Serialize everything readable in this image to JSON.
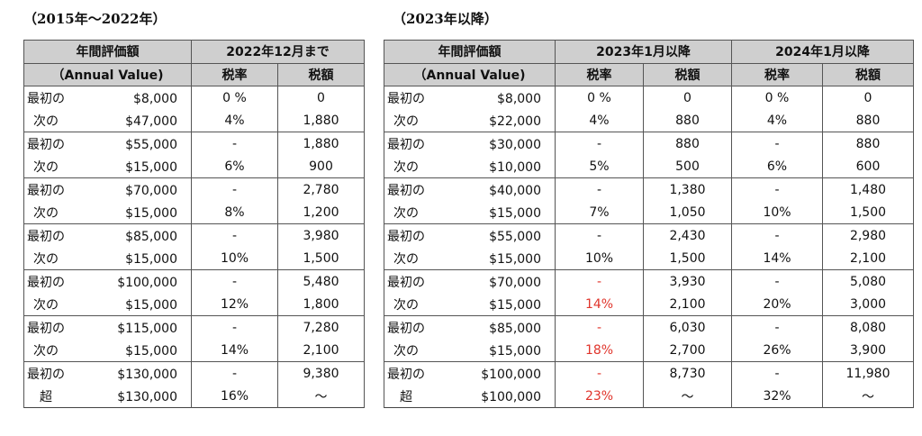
{
  "left": {
    "title": "（2015年〜2022年）",
    "header": {
      "col1_line1": "年間評価額",
      "col1_line2": "（Annual Value)",
      "group": "2022年12月まで",
      "rate": "税率",
      "tax": "税額"
    },
    "rows": [
      {
        "prefix": "最初の",
        "amount": "$8,000",
        "rate": "0 %",
        "tax": "0"
      },
      {
        "prefix": "次の",
        "amount": "$47,000",
        "rate": "4%",
        "tax": "1,880"
      },
      {
        "prefix": "最初の",
        "amount": "$55,000",
        "rate": "-",
        "tax": "1,880"
      },
      {
        "prefix": "次の",
        "amount": "$15,000",
        "rate": "6%",
        "tax": "900"
      },
      {
        "prefix": "最初の",
        "amount": "$70,000",
        "rate": "-",
        "tax": "2,780"
      },
      {
        "prefix": "次の",
        "amount": "$15,000",
        "rate": "8%",
        "tax": "1,200"
      },
      {
        "prefix": "最初の",
        "amount": "$85,000",
        "rate": "-",
        "tax": "3,980"
      },
      {
        "prefix": "次の",
        "amount": "$15,000",
        "rate": "10%",
        "tax": "1,500"
      },
      {
        "prefix": "最初の",
        "amount": "$100,000",
        "rate": "-",
        "tax": "5,480"
      },
      {
        "prefix": "次の",
        "amount": "$15,000",
        "rate": "12%",
        "tax": "1,800"
      },
      {
        "prefix": "最初の",
        "amount": "$115,000",
        "rate": "-",
        "tax": "7,280"
      },
      {
        "prefix": "次の",
        "amount": "$15,000",
        "rate": "14%",
        "tax": "2,100"
      },
      {
        "prefix": "最初の",
        "amount": "$130,000",
        "rate": "-",
        "tax": "9,380"
      },
      {
        "prefix": "超",
        "amount": "$130,000",
        "rate": "16%",
        "tax": "〜"
      }
    ]
  },
  "right": {
    "title": "（2023年以降）",
    "header": {
      "col1_line1": "年間評価額",
      "col1_line2": "（Annual Value)",
      "group1": "2023年1月以降",
      "group2": "2024年1月以降",
      "rate": "税率",
      "tax": "税額"
    },
    "rows": [
      {
        "prefix": "最初の",
        "amount": "$8,000",
        "rate1": "0 %",
        "tax1": "0",
        "rate2": "0 %",
        "tax2": "0"
      },
      {
        "prefix": "次の",
        "amount": "$22,000",
        "rate1": "4%",
        "tax1": "880",
        "rate2": "4%",
        "tax2": "880"
      },
      {
        "prefix": "最初の",
        "amount": "$30,000",
        "rate1": "-",
        "tax1": "880",
        "rate2": "-",
        "tax2": "880"
      },
      {
        "prefix": "次の",
        "amount": "$10,000",
        "rate1": "5%",
        "tax1": "500",
        "rate2": "6%",
        "tax2": "600"
      },
      {
        "prefix": "最初の",
        "amount": "$40,000",
        "rate1": "-",
        "tax1": "1,380",
        "rate2": "-",
        "tax2": "1,480"
      },
      {
        "prefix": "次の",
        "amount": "$15,000",
        "rate1": "7%",
        "tax1": "1,050",
        "rate2": "10%",
        "tax2": "1,500"
      },
      {
        "prefix": "最初の",
        "amount": "$55,000",
        "rate1": "-",
        "tax1": "2,430",
        "rate2": "-",
        "tax2": "2,980"
      },
      {
        "prefix": "次の",
        "amount": "$15,000",
        "rate1": "10%",
        "tax1": "1,500",
        "rate2": "14%",
        "tax2": "2,100"
      },
      {
        "prefix": "最初の",
        "amount": "$70,000",
        "rate1": "-",
        "rate1_red": true,
        "tax1": "3,930",
        "rate2": "-",
        "tax2": "5,080"
      },
      {
        "prefix": "次の",
        "amount": "$15,000",
        "rate1": "14%",
        "rate1_red": true,
        "tax1": "2,100",
        "rate2": "20%",
        "tax2": "3,000"
      },
      {
        "prefix": "最初の",
        "amount": "$85,000",
        "rate1": "-",
        "rate1_red": true,
        "tax1": "6,030",
        "rate2": "-",
        "tax2": "8,080"
      },
      {
        "prefix": "次の",
        "amount": "$15,000",
        "rate1": "18%",
        "rate1_red": true,
        "tax1": "2,700",
        "rate2": "26%",
        "tax2": "3,900"
      },
      {
        "prefix": "最初の",
        "amount": "$100,000",
        "rate1": "-",
        "rate1_red": true,
        "tax1": "8,730",
        "rate2": "-",
        "tax2": "11,980"
      },
      {
        "prefix": "超",
        "amount": "$100,000",
        "rate1": "23%",
        "rate1_red": true,
        "tax1": "〜",
        "rate2": "32%",
        "tax2": "〜"
      }
    ]
  },
  "colors": {
    "header_bg": "#cfcfcf",
    "highlight_red": "#e0342b",
    "border": "#555555"
  }
}
